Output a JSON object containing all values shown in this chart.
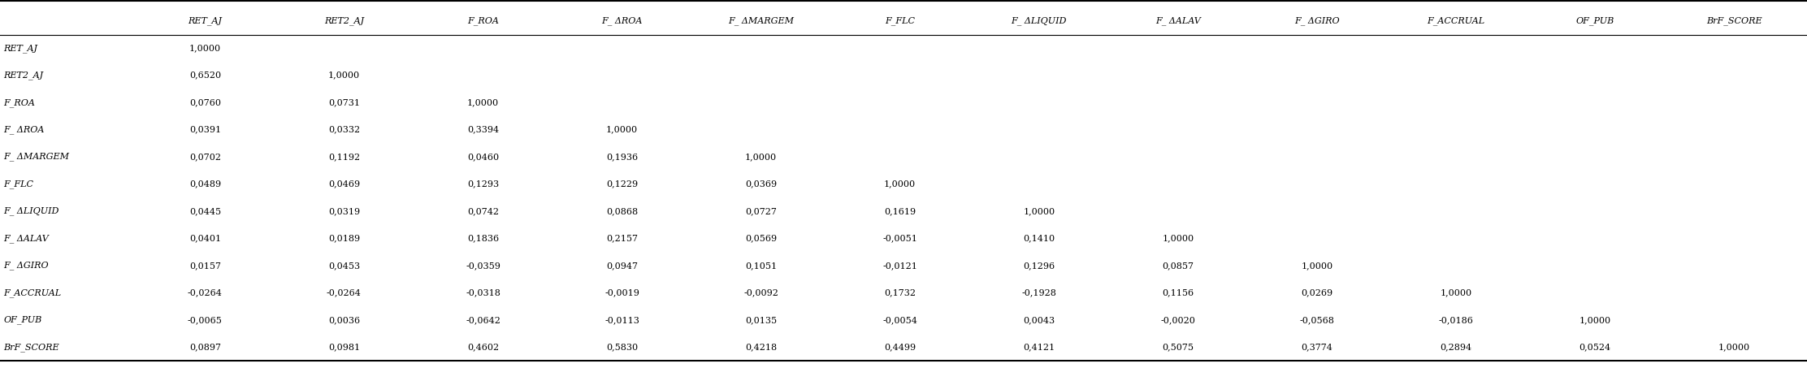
{
  "columns": [
    "RET_AJ",
    "RET2_AJ",
    "F_ROA",
    "F_ ΔROA",
    "F_ ΔMARGEM",
    "F_FLC",
    "F_ ΔLIQUID",
    "F_ ΔALAV",
    "F_ ΔGIRO",
    "F_ACCRUAL",
    "OF_PUB",
    "BrF_SCORE"
  ],
  "rows": [
    "RET_AJ",
    "RET2_AJ",
    "F_ROA",
    "F_ ΔROA",
    "F_ ΔMARGEM",
    "F_FLC",
    "F_ ΔLIQUID",
    "F_ ΔALAV",
    "F_ ΔGIRO",
    "F_ACCRUAL",
    "OF_PUB",
    "BrF_SCORE"
  ],
  "data": [
    [
      "1,0000",
      "",
      "",
      "",
      "",
      "",
      "",
      "",
      "",
      "",
      "",
      ""
    ],
    [
      "0,6520",
      "1,0000",
      "",
      "",
      "",
      "",
      "",
      "",
      "",
      "",
      "",
      ""
    ],
    [
      "0,0760",
      "0,0731",
      "1,0000",
      "",
      "",
      "",
      "",
      "",
      "",
      "",
      "",
      ""
    ],
    [
      "0,0391",
      "0,0332",
      "0,3394",
      "1,0000",
      "",
      "",
      "",
      "",
      "",
      "",
      "",
      ""
    ],
    [
      "0,0702",
      "0,1192",
      "0,0460",
      "0,1936",
      "1,0000",
      "",
      "",
      "",
      "",
      "",
      "",
      ""
    ],
    [
      "0,0489",
      "0,0469",
      "0,1293",
      "0,1229",
      "0,0369",
      "1,0000",
      "",
      "",
      "",
      "",
      "",
      ""
    ],
    [
      "0,0445",
      "0,0319",
      "0,0742",
      "0,0868",
      "0,0727",
      "0,1619",
      "1,0000",
      "",
      "",
      "",
      "",
      ""
    ],
    [
      "0,0401",
      "0,0189",
      "0,1836",
      "0,2157",
      "0,0569",
      "-0,0051",
      "0,1410",
      "1,0000",
      "",
      "",
      "",
      ""
    ],
    [
      "0,0157",
      "0,0453",
      "-0,0359",
      "0,0947",
      "0,1051",
      "-0,0121",
      "0,1296",
      "0,0857",
      "1,0000",
      "",
      "",
      ""
    ],
    [
      "-0,0264",
      "-0,0264",
      "-0,0318",
      "-0,0019",
      "-0,0092",
      "0,1732",
      "-0,1928",
      "0,1156",
      "0,0269",
      "1,0000",
      "",
      ""
    ],
    [
      "-0,0065",
      "0,0036",
      "-0,0642",
      "-0,0113",
      "0,0135",
      "-0,0054",
      "0,0043",
      "-0,0020",
      "-0,0568",
      "-0,0186",
      "1,0000",
      ""
    ],
    [
      "0,0897",
      "0,0981",
      "0,4602",
      "0,5830",
      "0,4218",
      "0,4499",
      "0,4121",
      "0,5075",
      "0,3774",
      "0,2894",
      "0,0524",
      "1,0000"
    ]
  ],
  "font_family": "DejaVu Serif",
  "font_size": 8.0,
  "background_color": "#ffffff",
  "text_color": "#000000",
  "figsize": [
    22.24,
    4.53
  ],
  "dpi": 100
}
